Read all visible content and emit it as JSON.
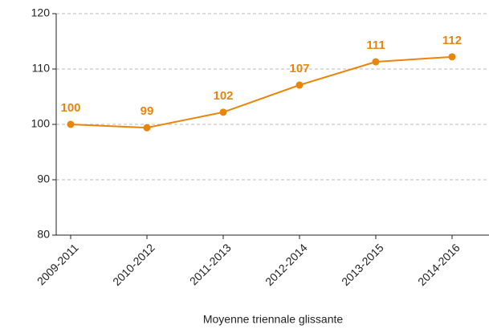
{
  "chart_data": {
    "type": "line",
    "x_label": "Moyenne triennale glissante",
    "categories": [
      "2009-2011",
      "2010-2012",
      "2011-2013",
      "2012-2014",
      "2013-2015",
      "2014-2016"
    ],
    "series": [
      {
        "name": null,
        "color": "#e8850c",
        "values": [
          100,
          99.4,
          102.2,
          107.1,
          111.3,
          112.2
        ],
        "value_labels": [
          "100",
          "99",
          "102",
          "107",
          "111",
          "112"
        ]
      }
    ],
    "ylim": [
      80,
      120
    ],
    "yticks": [
      80,
      90,
      100,
      110,
      120
    ],
    "grid": true
  }
}
